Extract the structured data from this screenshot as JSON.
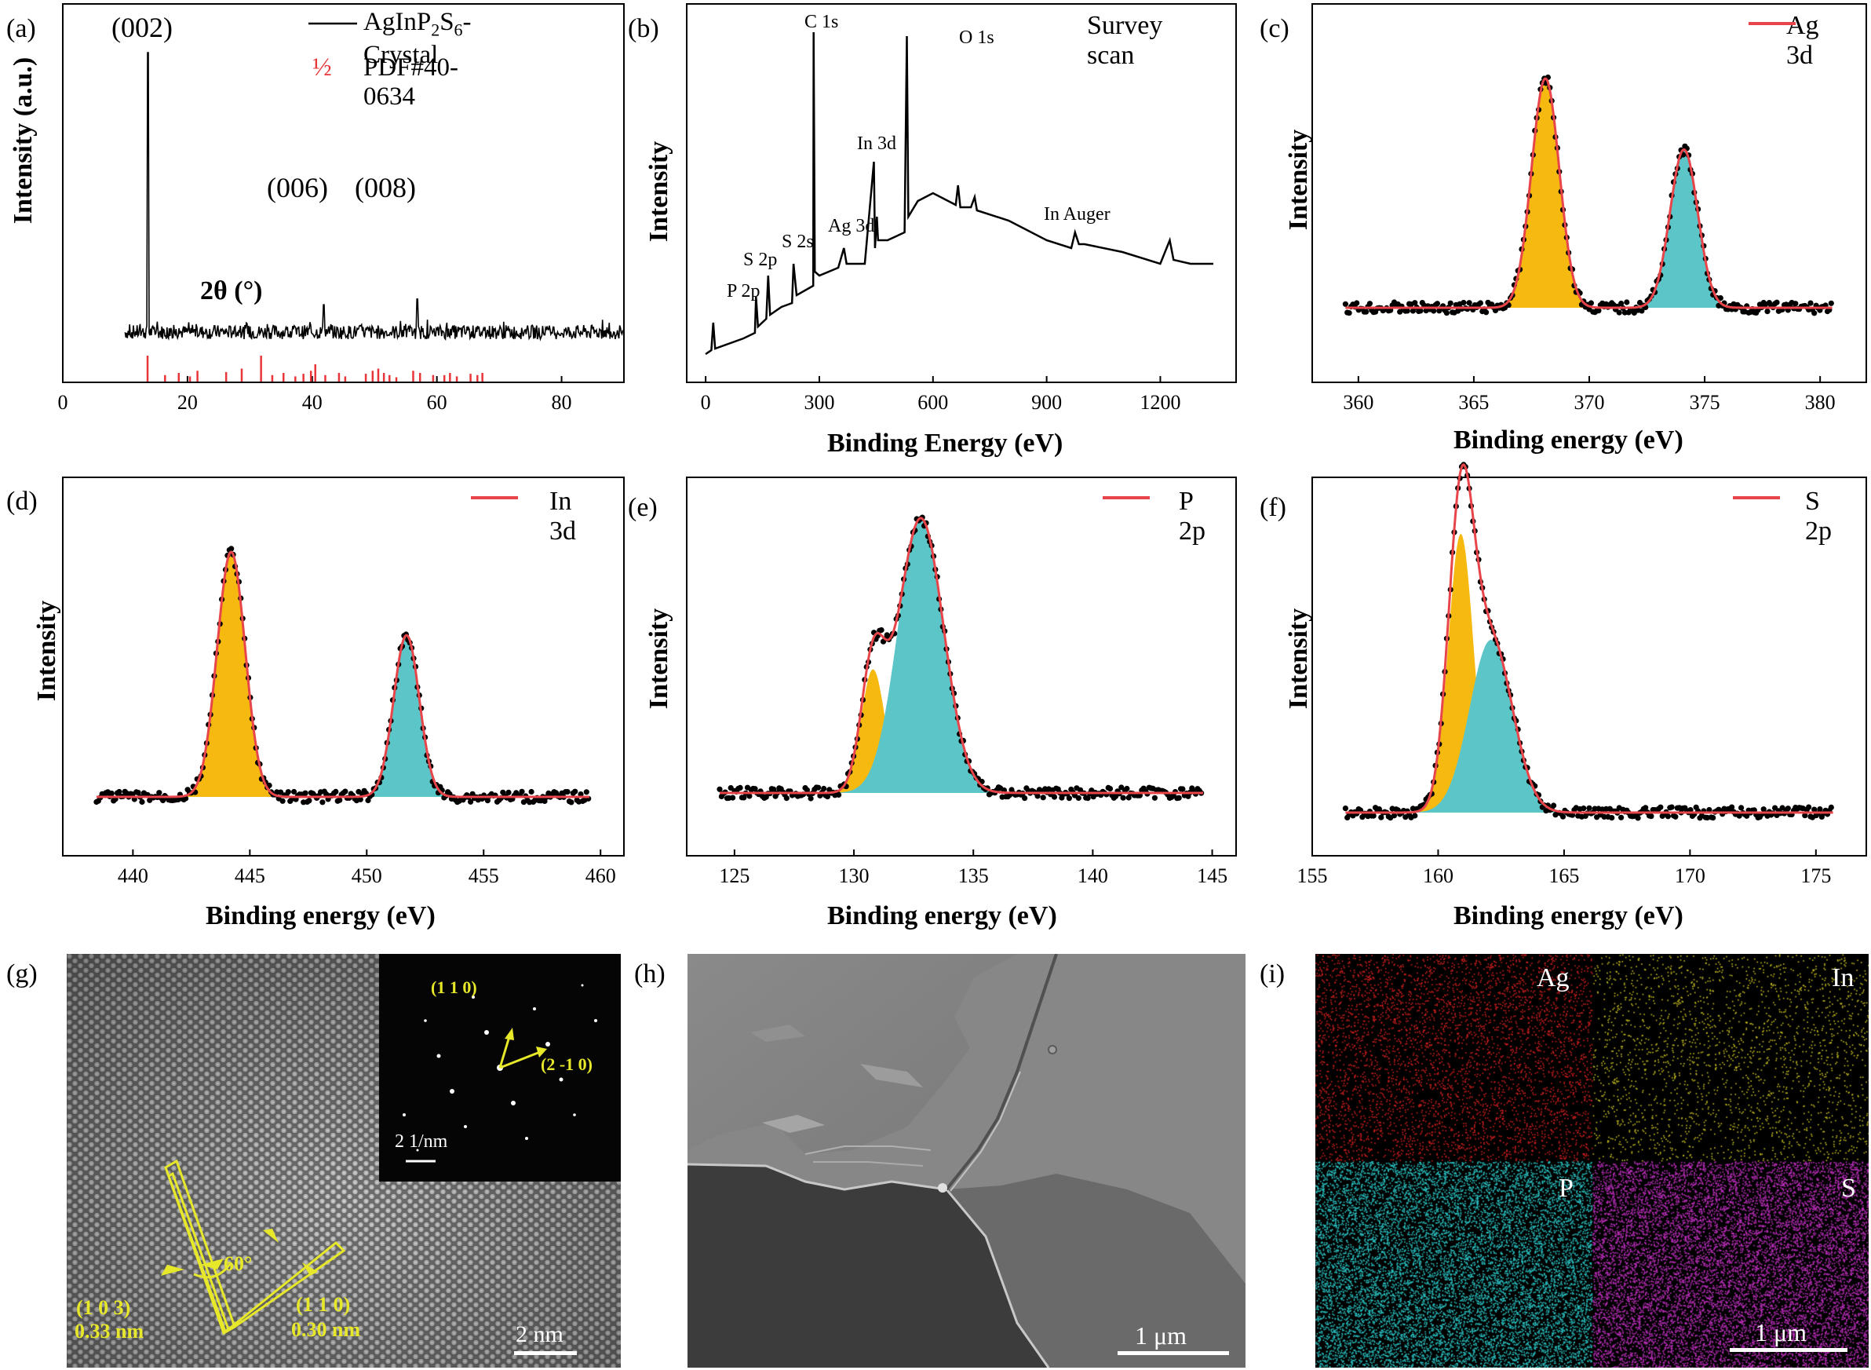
{
  "panels": {
    "a": {
      "label": "(a)",
      "ylabel": "Intensity (a.u.)",
      "xlabel": "2θ (°)",
      "legend_line": "AgInP2S6-Crystal",
      "legend_ref": "PDF#40-0634",
      "legend_ref_symbol": "½",
      "peak_labels": [
        "(002)",
        "(006)",
        "(008)"
      ]
    },
    "b": {
      "label": "(b)",
      "ylabel": "Intensity",
      "xlabel": "Binding Energy (eV)",
      "legend": "Survey scan",
      "annotations": [
        "C 1s",
        "O 1s",
        "In 3d",
        "In Auger",
        "Ag 3d",
        "S 2s",
        "S 2p",
        "P 2p"
      ]
    },
    "c": {
      "label": "(c)",
      "ylabel": "Intensity",
      "xlabel": "Binding energy (eV)",
      "legend": "Ag 3d"
    },
    "d": {
      "label": "(d)",
      "ylabel": "Intensity",
      "xlabel": "Binding energy (eV)",
      "legend": "In 3d"
    },
    "e": {
      "label": "(e)",
      "ylabel": "Intensity",
      "xlabel": "Binding energy (eV)",
      "legend": "P 2p"
    },
    "f": {
      "label": "(f)",
      "ylabel": "Intensity",
      "xlabel": "Binding energy (eV)",
      "legend": "S 2p"
    },
    "g": {
      "label": "(g)",
      "fft_labels": [
        "(1 1 0)",
        "(2 -1 0)"
      ],
      "fft_scale": "2 1/nm",
      "plane1": "(1 0 3)",
      "d1": "0.33 nm",
      "plane2": "(1 1 0)",
      "d2": "0.30 nm",
      "angle": "60°",
      "scale": "2 nm"
    },
    "h": {
      "label": "(h)",
      "scale": "1 μm"
    },
    "i": {
      "label": "(i)",
      "elements": [
        "Ag",
        "In",
        "P",
        "S"
      ],
      "scale": "1 μm"
    }
  },
  "colors": {
    "fit": "#e8454a",
    "orange": "#f6b90f",
    "teal": "#5cc5c8",
    "ref": "#e8353a",
    "dots": "#000000",
    "ag": "#d42020",
    "in": "#c8c020",
    "p": "#2cc5c5",
    "s": "#c030c0"
  },
  "chart_data": [
    {
      "id": "a",
      "type": "line",
      "xlim": [
        0,
        90
      ],
      "xticks": [
        0,
        20,
        40,
        60,
        80
      ],
      "peaks": [
        {
          "x": 13.6,
          "h": 1.0
        },
        {
          "x": 41.8,
          "h": 0.12
        },
        {
          "x": 56.8,
          "h": 0.14
        }
      ],
      "ref_lines": [
        13.6,
        16.4,
        18.6,
        20.4,
        21.6,
        26.2,
        28.7,
        31.8,
        33.6,
        35.4,
        37.3,
        38.6,
        39.8,
        40.5,
        42.1,
        44.3,
        45.3,
        48.6,
        49.7,
        50.6,
        51.5,
        52.4,
        53.5,
        56.2,
        57.3,
        59.4,
        61.2,
        62.1,
        63.2,
        65.4,
        66.5,
        67.3
      ],
      "ref_heights": [
        0.6,
        0.15,
        0.2,
        0.12,
        0.25,
        0.22,
        0.3,
        0.6,
        0.15,
        0.2,
        0.12,
        0.18,
        0.25,
        0.4,
        0.15,
        0.2,
        0.12,
        0.18,
        0.25,
        0.3,
        0.2,
        0.15,
        0.1,
        0.25,
        0.2,
        0.15,
        0.15,
        0.2,
        0.12,
        0.18,
        0.15,
        0.2
      ]
    },
    {
      "id": "b",
      "type": "line",
      "xlim": [
        -50,
        1400
      ],
      "xticks": [
        0,
        300,
        600,
        900,
        1200
      ]
    },
    {
      "id": "c",
      "type": "scatter",
      "xlim": [
        358,
        382
      ],
      "xticks": [
        360,
        365,
        370,
        375,
        380
      ],
      "components": [
        {
          "center": 368.1,
          "amp": 1.0,
          "sigma": 0.6,
          "color": "orange"
        },
        {
          "center": 374.1,
          "amp": 0.69,
          "sigma": 0.6,
          "color": "teal"
        }
      ]
    },
    {
      "id": "d",
      "type": "scatter",
      "xlim": [
        437,
        461
      ],
      "xticks": [
        440,
        445,
        450,
        455,
        460
      ],
      "components": [
        {
          "center": 444.2,
          "amp": 1.0,
          "sigma": 0.6,
          "color": "orange"
        },
        {
          "center": 451.7,
          "amp": 0.66,
          "sigma": 0.55,
          "color": "teal"
        }
      ]
    },
    {
      "id": "e",
      "type": "scatter",
      "xlim": [
        123,
        146
      ],
      "xticks": [
        125,
        130,
        135,
        140,
        145
      ],
      "components": [
        {
          "center": 130.8,
          "amp": 0.45,
          "sigma": 0.5,
          "color": "orange"
        },
        {
          "center": 132.8,
          "amp": 1.0,
          "sigma": 0.95,
          "color": "teal"
        }
      ]
    },
    {
      "id": "f",
      "type": "scatter",
      "xlim": [
        155,
        177
      ],
      "xticks": [
        155,
        160,
        165,
        170,
        175
      ],
      "components": [
        {
          "center": 160.9,
          "amp": 1.0,
          "sigma": 0.5,
          "color": "orange"
        },
        {
          "center": 162.1,
          "amp": 0.62,
          "sigma": 0.85,
          "color": "teal"
        }
      ]
    }
  ]
}
